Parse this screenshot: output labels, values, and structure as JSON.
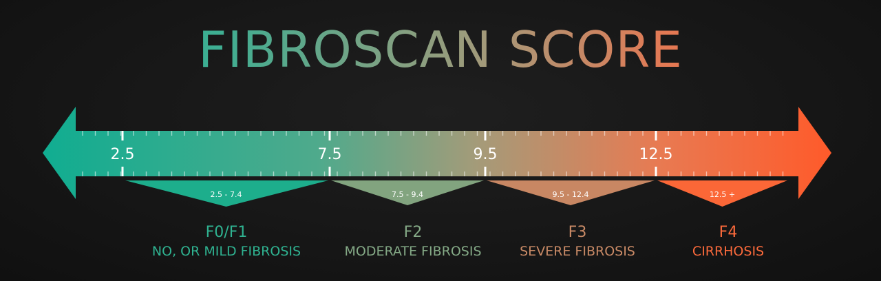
{
  "title": "FIBROSCAN SCORE",
  "colors": {
    "start": "#15ae90",
    "mid": "#a79a78",
    "end": "#ff5f2e",
    "background": "#171717"
  },
  "scale": {
    "min": 2.5,
    "max": 12.5,
    "ticks": [
      {
        "value": 2.5,
        "label": "2.5"
      },
      {
        "value": 7.5,
        "label": "7.5"
      },
      {
        "value": 9.5,
        "label": "9.5"
      },
      {
        "value": 12.5,
        "label": "12.5"
      }
    ]
  },
  "ranges": [
    {
      "label": "2.5 - 7.4",
      "from": 2.5,
      "to": 7.5
    },
    {
      "label": "7.5 - 9.4",
      "from": 7.5,
      "to": 9.5
    },
    {
      "label": "9.5 - 12.4",
      "from": 9.5,
      "to": 12.5
    },
    {
      "label": "12.5 +",
      "from": 12.5,
      "to": null
    }
  ],
  "stages": [
    {
      "code": "F0/F1",
      "description": "NO, OR MILD FIBROSIS",
      "color": "#2fb391"
    },
    {
      "code": "F2",
      "description": "MODERATE FIBROSIS",
      "color": "#84a986"
    },
    {
      "code": "F3",
      "description": "SEVERE FIBROSIS",
      "color": "#c98a66"
    },
    {
      "code": "F4",
      "description": "CIRRHOSIS",
      "color": "#fc6a3b"
    }
  ]
}
